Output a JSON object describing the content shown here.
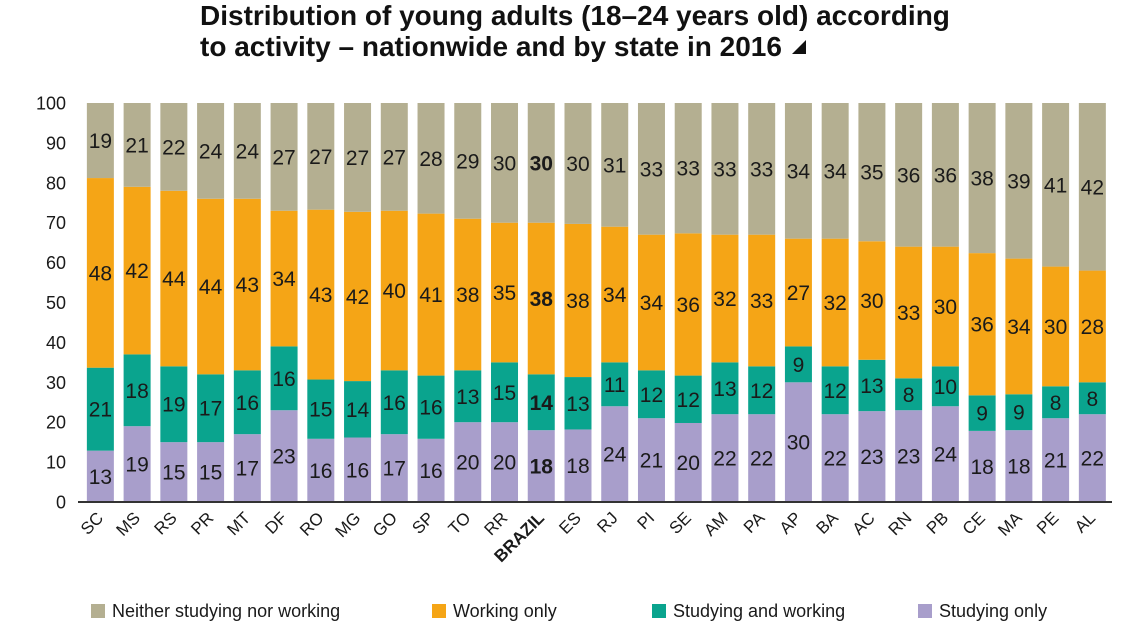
{
  "title_icon": "triangle-icon",
  "chart_data": {
    "type": "bar",
    "stacked": true,
    "title": "Distribution of young adults (18–24 years old) according to activity – nationwide and by state in 2016",
    "categories": [
      "SC",
      "MS",
      "RS",
      "PR",
      "MT",
      "DF",
      "RO",
      "MG",
      "GO",
      "SP",
      "TO",
      "RR",
      "BRAZIL",
      "ES",
      "RJ",
      "PI",
      "SE",
      "AM",
      "PA",
      "AP",
      "BA",
      "AC",
      "RN",
      "PB",
      "CE",
      "MA",
      "PE",
      "AL"
    ],
    "series": [
      {
        "name": "Neither studying nor working",
        "color": "#b4af91",
        "values": [
          19,
          21,
          22,
          24,
          24,
          27,
          27,
          27,
          27,
          28,
          29,
          30,
          30,
          30,
          31,
          33,
          33,
          33,
          33,
          34,
          34,
          35,
          36,
          36,
          38,
          39,
          41,
          42
        ]
      },
      {
        "name": "Working only",
        "color": "#f5a516",
        "values": [
          48,
          42,
          44,
          44,
          43,
          34,
          43,
          42,
          40,
          41,
          38,
          35,
          38,
          38,
          34,
          34,
          36,
          32,
          33,
          27,
          32,
          30,
          33,
          30,
          36,
          34,
          30,
          28
        ]
      },
      {
        "name": "Studying and working",
        "color": "#0aa48e",
        "values": [
          21,
          18,
          19,
          17,
          16,
          16,
          15,
          14,
          16,
          16,
          13,
          15,
          14,
          13,
          11,
          12,
          12,
          13,
          12,
          9,
          12,
          13,
          8,
          10,
          9,
          9,
          8,
          8
        ]
      },
      {
        "name": "Studying only",
        "color": "#a89ecb",
        "values": [
          13,
          19,
          15,
          15,
          17,
          23,
          16,
          16,
          17,
          16,
          20,
          20,
          18,
          18,
          24,
          21,
          20,
          22,
          22,
          30,
          22,
          23,
          23,
          24,
          18,
          18,
          21,
          22
        ]
      }
    ],
    "ylim": [
      0,
      100
    ],
    "yticks": [
      0,
      10,
      20,
      30,
      40,
      50,
      60,
      70,
      80,
      90,
      100
    ],
    "grid": false,
    "legend": "bottom",
    "highlighted_category_index": 12
  }
}
